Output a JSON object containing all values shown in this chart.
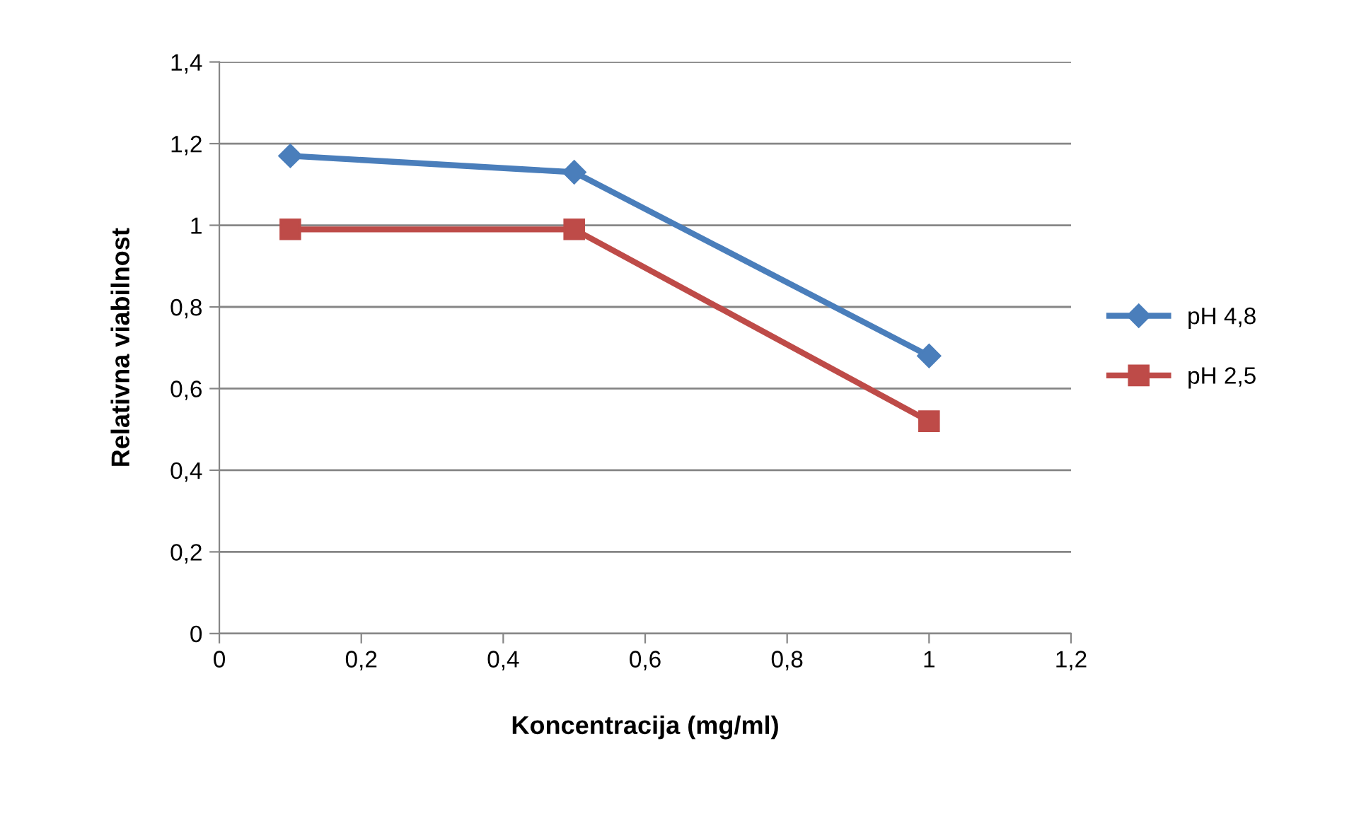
{
  "chart_data": {
    "type": "line",
    "xlabel": "Koncentracija (mg/ml)",
    "ylabel": "Relativna viabilnost",
    "x": [
      0.1,
      0.5,
      1
    ],
    "series": [
      {
        "name": "pH 4,8",
        "color": "#4a7ebb",
        "marker": "diamond",
        "values": [
          1.17,
          1.13,
          0.68
        ]
      },
      {
        "name": "pH 2,5",
        "color": "#be4b48",
        "marker": "square",
        "values": [
          0.99,
          0.99,
          0.52
        ]
      }
    ],
    "xlim": [
      0,
      1.2
    ],
    "xticks": [
      0,
      {
        "value": 0.2,
        "label": "0,2"
      },
      {
        "value": 0.4,
        "label": "0,4"
      },
      {
        "value": 0.6,
        "label": "0,6"
      },
      {
        "value": 0.8,
        "label": "0,8"
      },
      1,
      {
        "value": 1.2,
        "label": "1,2"
      }
    ],
    "ylim": [
      0,
      1.4
    ],
    "yticks": [
      0,
      {
        "value": 0.2,
        "label": "0,2"
      },
      {
        "value": 0.4,
        "label": "0,4"
      },
      {
        "value": 0.6,
        "label": "0,6"
      },
      {
        "value": 0.8,
        "label": "0,8"
      },
      1,
      {
        "value": 1.2,
        "label": "1,2"
      },
      {
        "value": 1.4,
        "label": "1,4"
      }
    ],
    "grid": "y",
    "legend": "right",
    "line_style": "solid"
  }
}
